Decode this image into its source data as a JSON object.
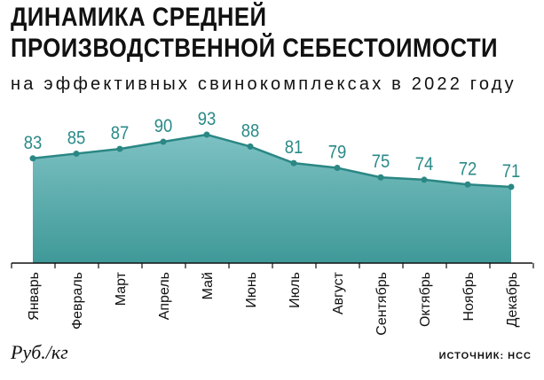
{
  "chart_data": {
    "type": "area",
    "title": [
      "ДИНАМИКА СРЕДНЕЙ",
      "ПРОИЗВОДСТВЕННОЙ СЕБЕСТОИМОСТИ"
    ],
    "subtitle": "на эффективных свинокомплексах в 2022 году",
    "categories": [
      "Январь",
      "Февраль",
      "Март",
      "Апрель",
      "Май",
      "Июнь",
      "Июль",
      "Август",
      "Сентябрь",
      "Октябрь",
      "Ноябрь",
      "Декабрь"
    ],
    "values": [
      83,
      85,
      87,
      90,
      93,
      88,
      81,
      79,
      75,
      74,
      72,
      71
    ],
    "ylabel": "Руб./кг",
    "source": "ИСТОЧНИК: НСС",
    "grid": false,
    "colors": {
      "line": "#2a8784",
      "fill_top": "#7dc1c3",
      "fill_bottom": "#3f9998",
      "label": "#2a8a88"
    }
  }
}
